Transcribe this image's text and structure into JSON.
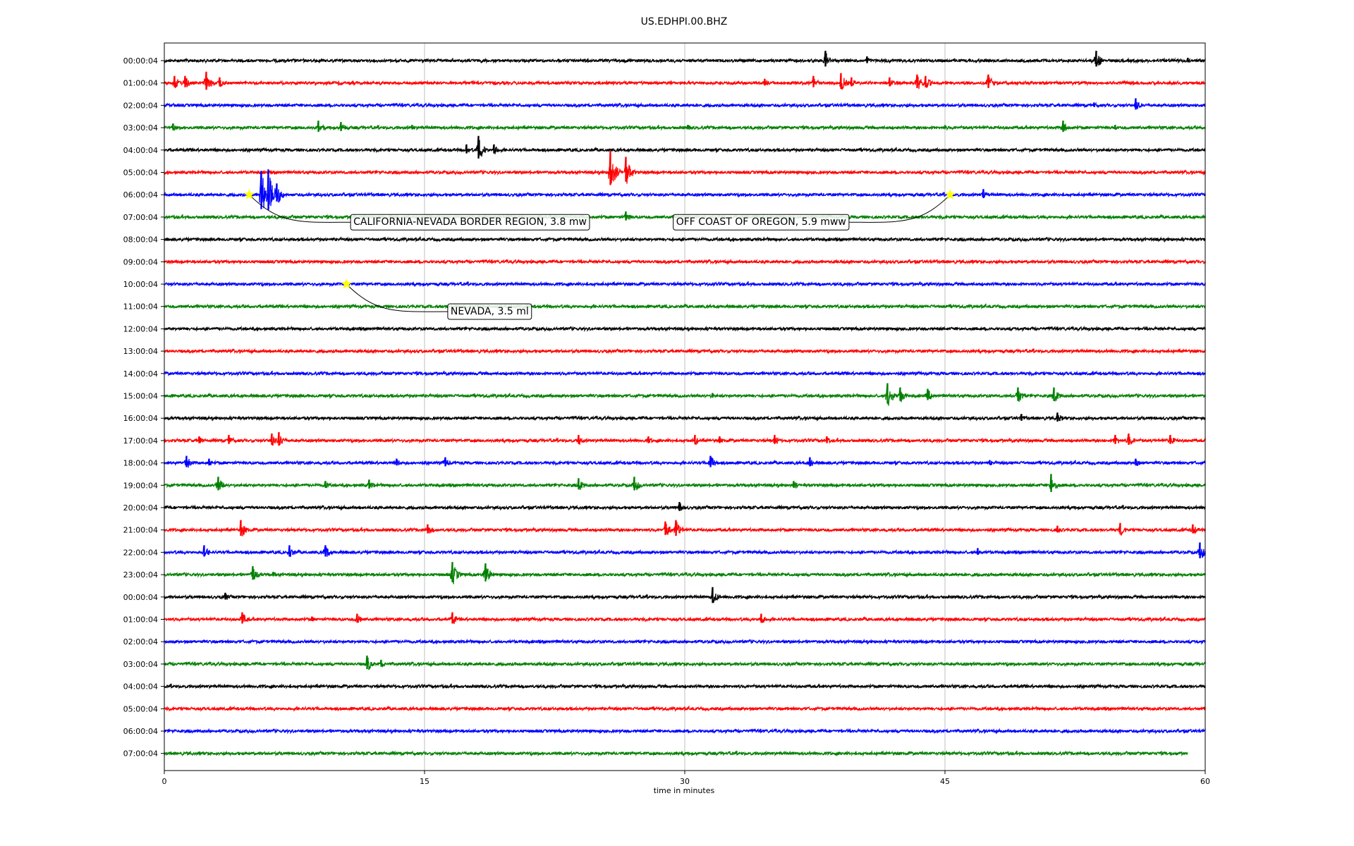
{
  "chart_data": {
    "type": "line",
    "title": "US.EDHPI.00.BHZ",
    "xlabel": "time in minutes",
    "ylabel": "",
    "xlim": [
      0,
      60
    ],
    "x_ticks": [
      0,
      15,
      30,
      45,
      60
    ],
    "x_tick_labels": [
      "0",
      "15",
      "30",
      "45",
      "60"
    ],
    "grid": "vertical at x ticks",
    "row_colors": [
      "#000000",
      "#ff0000",
      "#0000ff",
      "#008000"
    ],
    "rows": [
      {
        "label": "00:00:04",
        "events": [
          [
            38.1,
            14
          ],
          [
            40.5,
            6
          ],
          [
            53.7,
            14
          ],
          [
            59,
            4
          ]
        ]
      },
      {
        "label": "01:00:04",
        "events": [
          [
            0.6,
            10
          ],
          [
            1.2,
            10
          ],
          [
            2.4,
            16
          ],
          [
            3.2,
            8
          ],
          [
            34.6,
            6
          ],
          [
            37.4,
            10
          ],
          [
            39.0,
            14
          ],
          [
            39.6,
            8
          ],
          [
            41.8,
            8
          ],
          [
            43.4,
            12
          ],
          [
            43.9,
            10
          ],
          [
            47.5,
            12
          ]
        ]
      },
      {
        "label": "02:00:04",
        "events": [
          [
            56.0,
            10
          ],
          [
            53.6,
            4
          ]
        ]
      },
      {
        "label": "03:00:04",
        "events": [
          [
            0.5,
            6
          ],
          [
            8.9,
            10
          ],
          [
            10.2,
            8
          ],
          [
            14.3,
            4
          ],
          [
            30.2,
            4
          ],
          [
            45.0,
            4
          ],
          [
            51.8,
            10
          ],
          [
            54.8,
            4
          ]
        ]
      },
      {
        "label": "04:00:04",
        "events": [
          [
            17.4,
            8
          ],
          [
            18.1,
            20
          ],
          [
            19.0,
            8
          ]
        ]
      },
      {
        "label": "05:00:04",
        "events": [
          [
            25.7,
            30
          ],
          [
            26.6,
            22
          ]
        ]
      },
      {
        "label": "06:00:04",
        "events": [
          [
            5.6,
            34
          ],
          [
            6.0,
            36
          ],
          [
            6.5,
            16
          ],
          [
            47.2,
            8
          ]
        ]
      },
      {
        "label": "07:00:04",
        "events": [
          [
            26.6,
            8
          ]
        ]
      },
      {
        "label": "08:00:04",
        "events": []
      },
      {
        "label": "09:00:04",
        "events": []
      },
      {
        "label": "10:00:04",
        "events": []
      },
      {
        "label": "11:00:04",
        "events": []
      },
      {
        "label": "12:00:04",
        "events": []
      },
      {
        "label": "13:00:04",
        "events": []
      },
      {
        "label": "14:00:04",
        "events": []
      },
      {
        "label": "15:00:04",
        "events": [
          [
            41.7,
            18
          ],
          [
            42.4,
            12
          ],
          [
            44.0,
            10
          ],
          [
            49.2,
            12
          ],
          [
            51.3,
            12
          ],
          [
            31.6,
            4
          ]
        ]
      },
      {
        "label": "16:00:04",
        "events": [
          [
            49.4,
            6
          ],
          [
            51.5,
            8
          ]
        ]
      },
      {
        "label": "17:00:04",
        "events": [
          [
            2.0,
            6
          ],
          [
            3.7,
            8
          ],
          [
            6.2,
            10
          ],
          [
            6.6,
            12
          ],
          [
            23.9,
            8
          ],
          [
            27.9,
            6
          ],
          [
            30.6,
            8
          ],
          [
            32.0,
            6
          ],
          [
            35.2,
            8
          ],
          [
            38.2,
            6
          ],
          [
            54.8,
            8
          ],
          [
            55.6,
            10
          ],
          [
            58.0,
            8
          ]
        ]
      },
      {
        "label": "18:00:04",
        "events": [
          [
            1.3,
            10
          ],
          [
            2.6,
            6
          ],
          [
            13.4,
            6
          ],
          [
            16.2,
            8
          ],
          [
            31.5,
            10
          ],
          [
            37.2,
            8
          ],
          [
            47.6,
            4
          ],
          [
            56.0,
            6
          ]
        ]
      },
      {
        "label": "19:00:04",
        "events": [
          [
            3.1,
            12
          ],
          [
            9.3,
            6
          ],
          [
            11.8,
            8
          ],
          [
            23.9,
            10
          ],
          [
            27.1,
            12
          ],
          [
            36.3,
            6
          ],
          [
            51.1,
            16
          ]
        ]
      },
      {
        "label": "20:00:04",
        "events": [
          [
            29.7,
            8
          ]
        ]
      },
      {
        "label": "21:00:04",
        "events": [
          [
            4.4,
            14
          ],
          [
            15.2,
            8
          ],
          [
            28.9,
            12
          ],
          [
            29.5,
            14
          ],
          [
            51.5,
            6
          ],
          [
            55.1,
            10
          ],
          [
            59.3,
            8
          ]
        ]
      },
      {
        "label": "22:00:04",
        "events": [
          [
            2.3,
            10
          ],
          [
            7.2,
            10
          ],
          [
            9.3,
            10
          ],
          [
            46.9,
            6
          ],
          [
            59.7,
            14
          ]
        ]
      },
      {
        "label": "23:00:04",
        "events": [
          [
            5.1,
            12
          ],
          [
            16.6,
            18
          ],
          [
            18.5,
            16
          ],
          [
            6.3,
            4
          ]
        ]
      },
      {
        "label": "00:00:04",
        "events": [
          [
            3.5,
            6
          ],
          [
            31.6,
            14
          ]
        ]
      },
      {
        "label": "01:00:04",
        "events": [
          [
            4.5,
            10
          ],
          [
            11.1,
            8
          ],
          [
            16.6,
            10
          ],
          [
            34.4,
            8
          ],
          [
            8.5,
            4
          ]
        ]
      },
      {
        "label": "02:00:04",
        "events": []
      },
      {
        "label": "03:00:04",
        "events": [
          [
            11.7,
            12
          ],
          [
            12.5,
            6
          ]
        ]
      },
      {
        "label": "04:00:04",
        "events": []
      },
      {
        "label": "05:00:04",
        "events": []
      },
      {
        "label": "06:00:04",
        "events": []
      },
      {
        "label": "07:00:04",
        "events": [],
        "end_x": 59.0
      }
    ],
    "annotations": [
      {
        "text": "CALIFORNIA-NEVADA BORDER REGION, 3.8 mw",
        "row": 6,
        "x": 4.9,
        "box_x": 10.9,
        "box_row": 7.2
      },
      {
        "text": "OFF COAST OF OREGON, 5.9 mww",
        "row": 6,
        "x": 45.3,
        "box_x": 29.5,
        "box_row": 7.2
      },
      {
        "text": "NEVADA, 3.5 ml",
        "row": 10,
        "x": 10.5,
        "box_x": 16.5,
        "box_row": 11.2
      }
    ],
    "marker": {
      "shape": "star",
      "color": "#ffff00"
    }
  }
}
